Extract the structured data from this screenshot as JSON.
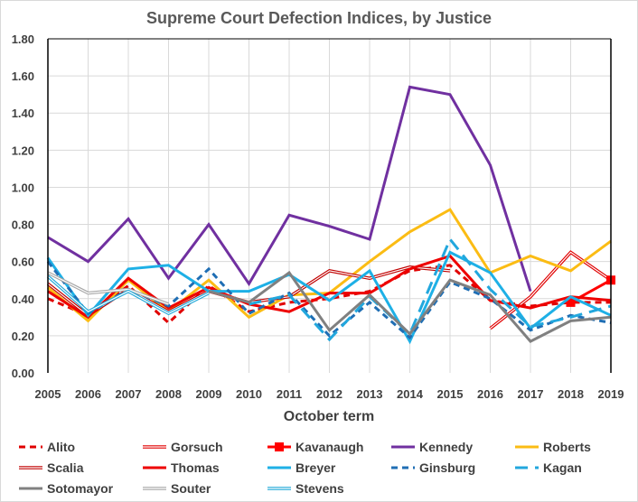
{
  "chart_data": {
    "type": "line",
    "title": "Supreme Court Defection Indices, by Justice",
    "xlabel": "October term",
    "ylabel": "",
    "x": [
      2005,
      2006,
      2007,
      2008,
      2009,
      2010,
      2011,
      2012,
      2013,
      2014,
      2015,
      2016,
      2017,
      2018,
      2019
    ],
    "ylim": [
      0,
      1.8
    ],
    "yticks": [
      "0.00",
      "0.20",
      "0.40",
      "0.60",
      "0.80",
      "1.00",
      "1.20",
      "1.40",
      "1.60",
      "1.80"
    ],
    "grid": true,
    "legend_position": "bottom",
    "series": [
      {
        "name": "Alito",
        "color": "#e00000",
        "style": "dashed",
        "values": [
          0.4,
          0.31,
          0.47,
          0.27,
          0.47,
          0.33,
          0.38,
          0.4,
          0.44,
          0.55,
          0.58,
          0.39,
          0.36,
          0.38,
          0.38
        ]
      },
      {
        "name": "Gorsuch",
        "color": "#e00000",
        "style": "double",
        "values": [
          null,
          null,
          null,
          null,
          null,
          null,
          null,
          null,
          null,
          null,
          null,
          0.24,
          0.41,
          0.65,
          0.5
        ]
      },
      {
        "name": "Kavanaugh",
        "color": "#ff0000",
        "style": "marker",
        "values": [
          null,
          null,
          null,
          null,
          null,
          null,
          null,
          null,
          null,
          null,
          null,
          null,
          null,
          0.38,
          0.5
        ]
      },
      {
        "name": "Kennedy",
        "color": "#7030a0",
        "style": "solid",
        "values": [
          0.73,
          0.6,
          0.83,
          0.51,
          0.8,
          0.48,
          0.85,
          0.79,
          0.72,
          1.54,
          1.5,
          1.12,
          0.44,
          null,
          null
        ]
      },
      {
        "name": "Roberts",
        "color": "#fbbc14",
        "style": "solid",
        "values": [
          0.46,
          0.28,
          0.5,
          0.33,
          0.5,
          0.3,
          0.42,
          0.43,
          0.6,
          0.76,
          0.88,
          0.54,
          0.63,
          0.55,
          0.71
        ]
      },
      {
        "name": "Scalia",
        "color": "#c00000",
        "style": "double",
        "values": [
          0.48,
          0.31,
          0.45,
          0.33,
          0.44,
          0.38,
          0.41,
          0.55,
          0.51,
          0.57,
          0.55,
          null,
          null,
          null,
          null
        ]
      },
      {
        "name": "Thomas",
        "color": "#ee0000",
        "style": "solid",
        "values": [
          0.44,
          0.3,
          0.51,
          0.35,
          0.46,
          0.37,
          0.33,
          0.43,
          0.43,
          0.56,
          0.63,
          0.39,
          0.35,
          0.41,
          0.39
        ]
      },
      {
        "name": "Breyer",
        "color": "#1eb0e6",
        "style": "solid",
        "values": [
          0.62,
          0.31,
          0.56,
          0.58,
          0.44,
          0.44,
          0.53,
          0.39,
          0.55,
          0.17,
          0.65,
          0.54,
          0.24,
          0.41,
          0.31
        ]
      },
      {
        "name": "Ginsburg",
        "color": "#1f6eb4",
        "style": "dashed",
        "values": [
          0.6,
          0.32,
          0.45,
          0.36,
          0.56,
          0.32,
          0.43,
          0.2,
          0.38,
          0.19,
          0.49,
          0.4,
          0.23,
          0.31,
          0.27
        ]
      },
      {
        "name": "Kagan",
        "color": "#22a7dd",
        "style": "longdash",
        "values": [
          null,
          null,
          null,
          null,
          null,
          0.37,
          0.42,
          0.18,
          0.41,
          0.21,
          0.72,
          0.45,
          0.25,
          0.3,
          0.36
        ]
      },
      {
        "name": "Sotomayor",
        "color": "#808080",
        "style": "solid",
        "values": [
          null,
          null,
          null,
          null,
          0.44,
          0.38,
          0.54,
          0.23,
          0.42,
          0.21,
          0.5,
          0.42,
          0.17,
          0.28,
          0.3
        ]
      },
      {
        "name": "Souter",
        "color": "#a6a6a6",
        "style": "double",
        "values": [
          0.54,
          0.43,
          0.45,
          0.37,
          null,
          null,
          null,
          null,
          null,
          null,
          null,
          null,
          null,
          null,
          null
        ]
      },
      {
        "name": "Stevens",
        "color": "#1fa8d9",
        "style": "double",
        "values": [
          0.52,
          0.33,
          0.44,
          0.32,
          0.43,
          null,
          null,
          null,
          null,
          null,
          null,
          null,
          null,
          null,
          null
        ]
      }
    ]
  }
}
